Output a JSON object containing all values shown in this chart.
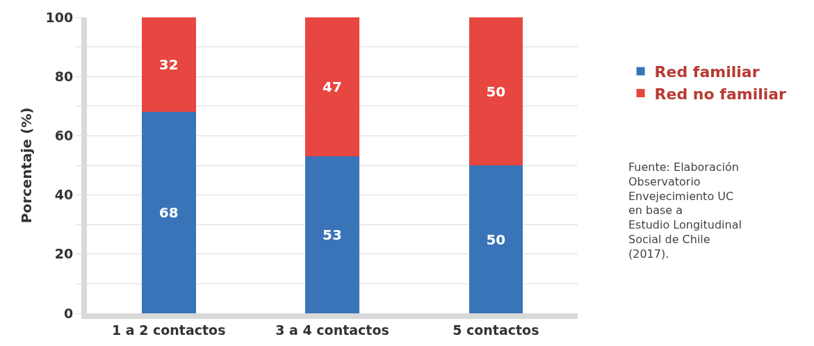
{
  "chart_data": {
    "type": "bar",
    "stacked": true,
    "ylabel": "Porcentaje (%)",
    "categories": [
      "1 a 2 contactos",
      "3 a 4 contactos",
      "5 contactos"
    ],
    "series": [
      {
        "name": "Red familiar",
        "color": "#3a74b8",
        "values": [
          68,
          53,
          50
        ]
      },
      {
        "name": "Red no familiar",
        "color": "#e84640",
        "values": [
          32,
          47,
          50
        ]
      }
    ],
    "ylim": [
      0,
      100
    ],
    "yticks": [
      0,
      {
        "value": 10,
        "label": null
      },
      20,
      {
        "value": 30,
        "label": null
      },
      40,
      {
        "value": 50,
        "label": null
      },
      60,
      {
        "value": 70,
        "label": null
      },
      80,
      {
        "value": 90,
        "label": null
      },
      100
    ],
    "grid": true,
    "legend": "right",
    "data_labels": true,
    "annotations": [
      "Fuente: Elaboración Observatorio Envejecimiento UC en base a Estudio Longitudinal Social de Chile (2017)."
    ]
  }
}
